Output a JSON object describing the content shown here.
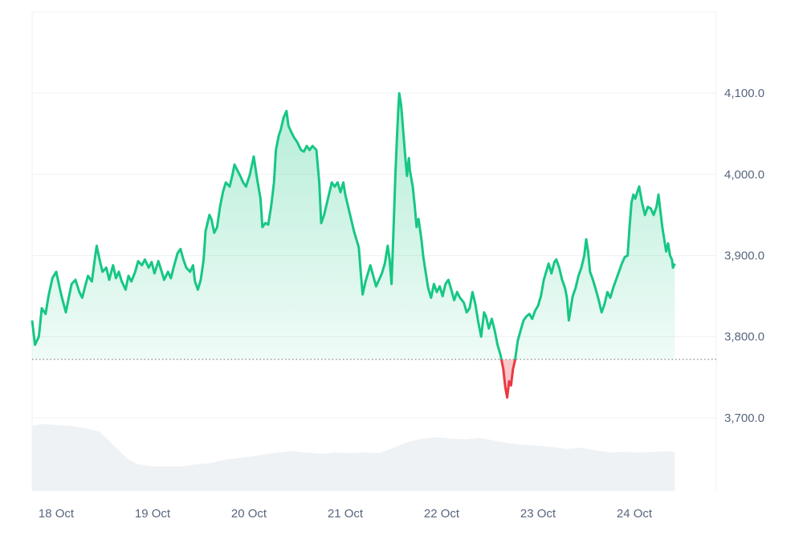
{
  "chart_data": {
    "type": "area",
    "title": "",
    "xlabel": "",
    "ylabel": "",
    "ylim": [
      3610,
      4200
    ],
    "y_ticks": [
      {
        "value": 4100,
        "label": "4,100.0"
      },
      {
        "value": 4000,
        "label": "4,000.0"
      },
      {
        "value": 3900,
        "label": "3,900.0"
      },
      {
        "value": 3800,
        "label": "3,800.0"
      },
      {
        "value": 3700,
        "label": "3,700.0"
      }
    ],
    "x_ticks": [
      {
        "t": 0.25,
        "label": "18 Oct"
      },
      {
        "t": 1.25,
        "label": "19 Oct"
      },
      {
        "t": 2.25,
        "label": "20 Oct"
      },
      {
        "t": 3.25,
        "label": "21 Oct"
      },
      {
        "t": 4.25,
        "label": "22 Oct"
      },
      {
        "t": 5.25,
        "label": "23 Oct"
      },
      {
        "t": 6.25,
        "label": "24 Oct"
      }
    ],
    "t_range": [
      0,
      7.1
    ],
    "baseline": 3772,
    "grid": true,
    "colors": {
      "up": "#16c784",
      "down": "#ea3943",
      "volume": "#eff2f5",
      "grid": "#eff2f5",
      "baseline": "#7c7c7c"
    },
    "series": [
      {
        "points": [
          [
            0.0,
            3820
          ],
          [
            0.03,
            3790
          ],
          [
            0.07,
            3800
          ],
          [
            0.1,
            3835
          ],
          [
            0.14,
            3828
          ],
          [
            0.17,
            3850
          ],
          [
            0.21,
            3872
          ],
          [
            0.25,
            3880
          ],
          [
            0.29,
            3858
          ],
          [
            0.31,
            3848
          ],
          [
            0.35,
            3830
          ],
          [
            0.38,
            3848
          ],
          [
            0.41,
            3865
          ],
          [
            0.45,
            3870
          ],
          [
            0.49,
            3855
          ],
          [
            0.52,
            3848
          ],
          [
            0.55,
            3862
          ],
          [
            0.58,
            3875
          ],
          [
            0.62,
            3868
          ],
          [
            0.65,
            3895
          ],
          [
            0.67,
            3912
          ],
          [
            0.7,
            3895
          ],
          [
            0.73,
            3880
          ],
          [
            0.77,
            3885
          ],
          [
            0.8,
            3870
          ],
          [
            0.84,
            3888
          ],
          [
            0.87,
            3872
          ],
          [
            0.9,
            3880
          ],
          [
            0.93,
            3868
          ],
          [
            0.97,
            3858
          ],
          [
            1.0,
            3875
          ],
          [
            1.03,
            3868
          ],
          [
            1.07,
            3880
          ],
          [
            1.1,
            3893
          ],
          [
            1.14,
            3888
          ],
          [
            1.17,
            3895
          ],
          [
            1.21,
            3885
          ],
          [
            1.24,
            3892
          ],
          [
            1.27,
            3878
          ],
          [
            1.31,
            3893
          ],
          [
            1.34,
            3882
          ],
          [
            1.37,
            3870
          ],
          [
            1.41,
            3880
          ],
          [
            1.44,
            3872
          ],
          [
            1.47,
            3886
          ],
          [
            1.51,
            3903
          ],
          [
            1.54,
            3908
          ],
          [
            1.57,
            3895
          ],
          [
            1.6,
            3885
          ],
          [
            1.64,
            3880
          ],
          [
            1.67,
            3888
          ],
          [
            1.69,
            3868
          ],
          [
            1.72,
            3858
          ],
          [
            1.75,
            3870
          ],
          [
            1.78,
            3895
          ],
          [
            1.8,
            3930
          ],
          [
            1.84,
            3950
          ],
          [
            1.86,
            3945
          ],
          [
            1.89,
            3928
          ],
          [
            1.92,
            3935
          ],
          [
            1.95,
            3960
          ],
          [
            1.98,
            3978
          ],
          [
            2.01,
            3990
          ],
          [
            2.05,
            3985
          ],
          [
            2.08,
            4000
          ],
          [
            2.1,
            4012
          ],
          [
            2.13,
            4005
          ],
          [
            2.16,
            3998
          ],
          [
            2.19,
            3990
          ],
          [
            2.22,
            3985
          ],
          [
            2.26,
            4000
          ],
          [
            2.3,
            4022
          ],
          [
            2.33,
            3998
          ],
          [
            2.37,
            3970
          ],
          [
            2.39,
            3935
          ],
          [
            2.42,
            3940
          ],
          [
            2.45,
            3938
          ],
          [
            2.48,
            3960
          ],
          [
            2.51,
            3990
          ],
          [
            2.53,
            4030
          ],
          [
            2.56,
            4048
          ],
          [
            2.58,
            4055
          ],
          [
            2.61,
            4070
          ],
          [
            2.64,
            4078
          ],
          [
            2.66,
            4060
          ],
          [
            2.69,
            4052
          ],
          [
            2.72,
            4045
          ],
          [
            2.75,
            4040
          ],
          [
            2.79,
            4030
          ],
          [
            2.82,
            4028
          ],
          [
            2.85,
            4035
          ],
          [
            2.88,
            4030
          ],
          [
            2.91,
            4035
          ],
          [
            2.95,
            4030
          ],
          [
            2.98,
            3990
          ],
          [
            3.0,
            3940
          ],
          [
            3.03,
            3950
          ],
          [
            3.06,
            3965
          ],
          [
            3.09,
            3980
          ],
          [
            3.11,
            3990
          ],
          [
            3.14,
            3985
          ],
          [
            3.17,
            3990
          ],
          [
            3.2,
            3978
          ],
          [
            3.23,
            3990
          ],
          [
            3.25,
            3975
          ],
          [
            3.28,
            3960
          ],
          [
            3.31,
            3945
          ],
          [
            3.34,
            3930
          ],
          [
            3.36,
            3922
          ],
          [
            3.39,
            3910
          ],
          [
            3.41,
            3880
          ],
          [
            3.43,
            3852
          ],
          [
            3.46,
            3868
          ],
          [
            3.49,
            3880
          ],
          [
            3.51,
            3888
          ],
          [
            3.54,
            3875
          ],
          [
            3.57,
            3862
          ],
          [
            3.6,
            3870
          ],
          [
            3.63,
            3878
          ],
          [
            3.66,
            3890
          ],
          [
            3.69,
            3912
          ],
          [
            3.71,
            3895
          ],
          [
            3.73,
            3865
          ],
          [
            3.75,
            3930
          ],
          [
            3.77,
            4000
          ],
          [
            3.79,
            4055
          ],
          [
            3.8,
            4080
          ],
          [
            3.81,
            4100
          ],
          [
            3.83,
            4085
          ],
          [
            3.85,
            4055
          ],
          [
            3.87,
            4025
          ],
          [
            3.89,
            3998
          ],
          [
            3.91,
            4020
          ],
          [
            3.92,
            4005
          ],
          [
            3.95,
            3985
          ],
          [
            3.97,
            3962
          ],
          [
            3.99,
            3935
          ],
          [
            4.01,
            3945
          ],
          [
            4.04,
            3920
          ],
          [
            4.06,
            3898
          ],
          [
            4.09,
            3875
          ],
          [
            4.11,
            3860
          ],
          [
            4.14,
            3848
          ],
          [
            4.17,
            3865
          ],
          [
            4.2,
            3855
          ],
          [
            4.23,
            3862
          ],
          [
            4.26,
            3850
          ],
          [
            4.29,
            3865
          ],
          [
            4.32,
            3870
          ],
          [
            4.35,
            3858
          ],
          [
            4.38,
            3845
          ],
          [
            4.41,
            3855
          ],
          [
            4.44,
            3848
          ],
          [
            4.48,
            3842
          ],
          [
            4.51,
            3830
          ],
          [
            4.54,
            3835
          ],
          [
            4.57,
            3855
          ],
          [
            4.6,
            3840
          ],
          [
            4.63,
            3818
          ],
          [
            4.66,
            3800
          ],
          [
            4.69,
            3830
          ],
          [
            4.71,
            3825
          ],
          [
            4.74,
            3810
          ],
          [
            4.77,
            3822
          ],
          [
            4.8,
            3808
          ],
          [
            4.83,
            3790
          ],
          [
            4.86,
            3778
          ],
          [
            4.89,
            3760
          ],
          [
            4.91,
            3738
          ],
          [
            4.93,
            3725
          ],
          [
            4.95,
            3745
          ],
          [
            4.97,
            3740
          ],
          [
            4.99,
            3760
          ],
          [
            5.01,
            3770
          ],
          [
            5.04,
            3795
          ],
          [
            5.07,
            3808
          ],
          [
            5.1,
            3820
          ],
          [
            5.13,
            3825
          ],
          [
            5.16,
            3828
          ],
          [
            5.19,
            3822
          ],
          [
            5.22,
            3832
          ],
          [
            5.25,
            3838
          ],
          [
            5.28,
            3850
          ],
          [
            5.31,
            3870
          ],
          [
            5.34,
            3882
          ],
          [
            5.36,
            3890
          ],
          [
            5.39,
            3878
          ],
          [
            5.42,
            3892
          ],
          [
            5.44,
            3895
          ],
          [
            5.47,
            3885
          ],
          [
            5.5,
            3870
          ],
          [
            5.53,
            3860
          ],
          [
            5.55,
            3848
          ],
          [
            5.57,
            3820
          ],
          [
            5.59,
            3835
          ],
          [
            5.61,
            3850
          ],
          [
            5.64,
            3860
          ],
          [
            5.67,
            3875
          ],
          [
            5.7,
            3885
          ],
          [
            5.73,
            3900
          ],
          [
            5.75,
            3920
          ],
          [
            5.77,
            3905
          ],
          [
            5.79,
            3880
          ],
          [
            5.82,
            3870
          ],
          [
            5.85,
            3858
          ],
          [
            5.88,
            3845
          ],
          [
            5.91,
            3830
          ],
          [
            5.94,
            3840
          ],
          [
            5.97,
            3855
          ],
          [
            6.0,
            3848
          ],
          [
            6.03,
            3860
          ],
          [
            6.06,
            3870
          ],
          [
            6.09,
            3880
          ],
          [
            6.12,
            3890
          ],
          [
            6.15,
            3898
          ],
          [
            6.18,
            3900
          ],
          [
            6.2,
            3935
          ],
          [
            6.22,
            3965
          ],
          [
            6.24,
            3975
          ],
          [
            6.26,
            3970
          ],
          [
            6.28,
            3978
          ],
          [
            6.3,
            3985
          ],
          [
            6.33,
            3965
          ],
          [
            6.36,
            3950
          ],
          [
            6.39,
            3960
          ],
          [
            6.42,
            3958
          ],
          [
            6.45,
            3950
          ],
          [
            6.48,
            3960
          ],
          [
            6.5,
            3975
          ],
          [
            6.52,
            3955
          ],
          [
            6.54,
            3935
          ],
          [
            6.56,
            3920
          ],
          [
            6.58,
            3905
          ],
          [
            6.6,
            3915
          ],
          [
            6.62,
            3900
          ],
          [
            6.64,
            3895
          ],
          [
            6.65,
            3885
          ],
          [
            6.67,
            3890
          ]
        ]
      }
    ],
    "volume": [
      [
        0.0,
        0.93
      ],
      [
        0.1,
        0.96
      ],
      [
        0.2,
        0.95
      ],
      [
        0.4,
        0.93
      ],
      [
        0.55,
        0.9
      ],
      [
        0.7,
        0.85
      ],
      [
        0.85,
        0.65
      ],
      [
        1.0,
        0.45
      ],
      [
        1.1,
        0.38
      ],
      [
        1.25,
        0.35
      ],
      [
        1.4,
        0.35
      ],
      [
        1.55,
        0.35
      ],
      [
        1.7,
        0.38
      ],
      [
        1.85,
        0.4
      ],
      [
        2.0,
        0.45
      ],
      [
        2.2,
        0.48
      ],
      [
        2.4,
        0.52
      ],
      [
        2.55,
        0.55
      ],
      [
        2.7,
        0.57
      ],
      [
        2.85,
        0.55
      ],
      [
        3.0,
        0.53
      ],
      [
        3.15,
        0.55
      ],
      [
        3.3,
        0.54
      ],
      [
        3.45,
        0.55
      ],
      [
        3.6,
        0.54
      ],
      [
        3.75,
        0.62
      ],
      [
        3.9,
        0.7
      ],
      [
        4.05,
        0.75
      ],
      [
        4.2,
        0.77
      ],
      [
        4.35,
        0.75
      ],
      [
        4.5,
        0.74
      ],
      [
        4.65,
        0.76
      ],
      [
        4.8,
        0.72
      ],
      [
        4.95,
        0.68
      ],
      [
        5.1,
        0.66
      ],
      [
        5.25,
        0.65
      ],
      [
        5.4,
        0.63
      ],
      [
        5.55,
        0.6
      ],
      [
        5.7,
        0.62
      ],
      [
        5.85,
        0.58
      ],
      [
        6.0,
        0.55
      ],
      [
        6.15,
        0.56
      ],
      [
        6.3,
        0.55
      ],
      [
        6.45,
        0.56
      ],
      [
        6.6,
        0.57
      ],
      [
        6.67,
        0.55
      ]
    ]
  }
}
